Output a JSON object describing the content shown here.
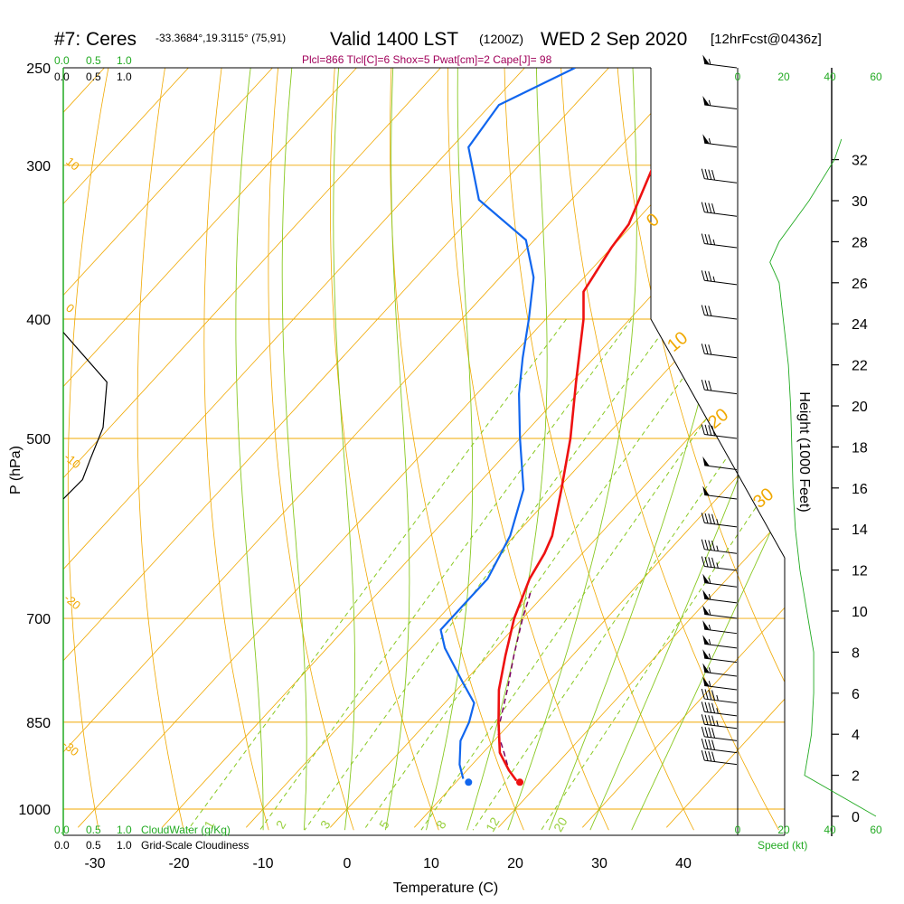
{
  "title": {
    "station": "#7: Ceres",
    "coords": "-33.3684°,19.3115° (75,91)",
    "valid": "Valid 1400 LST",
    "utc": "(1200Z)",
    "date": "WED 2 Sep 2020",
    "forecast": "[12hrFcst@0436z]"
  },
  "params_line": "Plcl=866 Tlcl[C]=6 Shox=5 Pwat[cm]=2 Cape[J]= 98",
  "axes": {
    "ylabel": "P (hPa)",
    "xlabel": "Temperature (C)",
    "right_label": "Height (1000 Feet)",
    "speed_label": "Speed (kt)",
    "cloudwater_label": "CloudWater (g/Kg)",
    "cloudiness_label": "Grid-Scale Cloudiness",
    "cloud_scale_top": [
      "0.0",
      "0.5",
      "1.0"
    ],
    "cloud_scale_bottom": [
      "0.0",
      "0.5",
      "1.0"
    ],
    "speed_ticks": [
      "0",
      "20",
      "40",
      "60"
    ]
  },
  "colors": {
    "temperature": "#ee1111",
    "dewpoint": "#1166ee",
    "parcel": "#7a0060",
    "isotherm": "#f0a800",
    "dry_adiabat": "#f0a800",
    "moist_adiabat": "#88c820",
    "mixing_ratio": "#88c820",
    "speed_profile": "#22aa22",
    "cloud_line": "#000000"
  },
  "chart_data": {
    "type": "line",
    "chart": "Skew-T log-P sounding",
    "pressure_ticks": [
      250,
      300,
      400,
      500,
      700,
      850,
      1000
    ],
    "pressure_tick_labels": [
      "250",
      "300",
      "400",
      "500",
      "700",
      "850",
      "1000"
    ],
    "temperature_ticks": [
      -30,
      -20,
      -10,
      0,
      10,
      20,
      30,
      40
    ],
    "temperature_tick_labels": [
      "-30",
      "-20",
      "-10",
      "0",
      "10",
      "20",
      "30",
      "40"
    ],
    "height_ticks_kft": [
      0,
      2,
      4,
      6,
      8,
      10,
      12,
      14,
      16,
      18,
      20,
      22,
      24,
      26,
      28,
      30,
      32
    ],
    "height_tick_labels": [
      "0",
      "2",
      "4",
      "6",
      "8",
      "10",
      "12",
      "14",
      "16",
      "18",
      "20",
      "22",
      "24",
      "26",
      "28",
      "30",
      "32"
    ],
    "temperature_profile": [
      {
        "p": 250,
        "t": -42.0
      },
      {
        "p": 270,
        "t": -38.5
      },
      {
        "p": 300,
        "t": -34.0
      },
      {
        "p": 335,
        "t": -30.5
      },
      {
        "p": 350,
        "t": -30.0
      },
      {
        "p": 380,
        "t": -28.5
      },
      {
        "p": 400,
        "t": -25.5
      },
      {
        "p": 450,
        "t": -19.5
      },
      {
        "p": 500,
        "t": -14.0
      },
      {
        "p": 550,
        "t": -9.5
      },
      {
        "p": 600,
        "t": -5.5
      },
      {
        "p": 620,
        "t": -4.5
      },
      {
        "p": 650,
        "t": -3.5
      },
      {
        "p": 700,
        "t": -1.0
      },
      {
        "p": 750,
        "t": 2.0
      },
      {
        "p": 800,
        "t": 5.0
      },
      {
        "p": 850,
        "t": 8.5
      },
      {
        "p": 900,
        "t": 12.0
      },
      {
        "p": 930,
        "t": 15.0
      },
      {
        "p": 948,
        "t": 17.0
      }
    ],
    "dewpoint_profile": [
      {
        "p": 250,
        "t": -54.0
      },
      {
        "p": 268,
        "t": -59.0
      },
      {
        "p": 290,
        "t": -58.0
      },
      {
        "p": 320,
        "t": -51.0
      },
      {
        "p": 345,
        "t": -41.0
      },
      {
        "p": 370,
        "t": -36.0
      },
      {
        "p": 400,
        "t": -32.0
      },
      {
        "p": 430,
        "t": -28.5
      },
      {
        "p": 460,
        "t": -25.0
      },
      {
        "p": 500,
        "t": -20.0
      },
      {
        "p": 550,
        "t": -14.0
      },
      {
        "p": 600,
        "t": -10.5
      },
      {
        "p": 650,
        "t": -8.5
      },
      {
        "p": 680,
        "t": -8.5
      },
      {
        "p": 715,
        "t": -8.5
      },
      {
        "p": 740,
        "t": -6.0
      },
      {
        "p": 790,
        "t": 0.0
      },
      {
        "p": 820,
        "t": 3.5
      },
      {
        "p": 850,
        "t": 5.0
      },
      {
        "p": 880,
        "t": 6.0
      },
      {
        "p": 920,
        "t": 8.5
      },
      {
        "p": 945,
        "t": 10.5
      }
    ],
    "surface": {
      "p": 951,
      "t": 17.6,
      "td": 11.5
    },
    "parcel_profile": [
      {
        "p": 948,
        "t": 17.0
      },
      {
        "p": 930,
        "t": 15.0
      },
      {
        "p": 900,
        "t": 12.5
      },
      {
        "p": 866,
        "t": 9.5
      },
      {
        "p": 800,
        "t": 6.0
      },
      {
        "p": 750,
        "t": 3.0
      },
      {
        "p": 700,
        "t": 0.0
      },
      {
        "p": 665,
        "t": -2.0
      }
    ],
    "isotherms_c": [
      -110,
      -100,
      -90,
      -80,
      -70,
      -60,
      -50,
      -40,
      -30,
      -20,
      -10,
      0,
      10,
      20,
      30,
      40
    ],
    "dry_adiabats_c": [
      -30,
      -20,
      -10,
      0,
      10,
      20,
      30,
      40,
      50,
      60,
      70,
      80,
      90,
      100,
      110,
      120,
      130,
      140,
      150
    ],
    "dry_adiabat_labels": [
      "10",
      "0",
      "-10",
      "-20",
      "-30",
      "0",
      "10",
      "20",
      "30"
    ],
    "moist_adiabats_c": [
      -10,
      -5,
      0,
      5,
      10,
      15,
      20,
      25,
      30,
      35
    ],
    "mixing_ratios_gkg": [
      1,
      2,
      3,
      5,
      8,
      12,
      20
    ],
    "mixing_ratio_labels": [
      "1",
      "2",
      "3",
      "5",
      "8",
      "12",
      "20"
    ],
    "cloud_profile": [
      {
        "p": 410,
        "v": 0.0
      },
      {
        "p": 450,
        "v": 0.68
      },
      {
        "p": 490,
        "v": 0.62
      },
      {
        "p": 520,
        "v": 0.42
      },
      {
        "p": 540,
        "v": 0.3
      },
      {
        "p": 560,
        "v": 0.0
      }
    ],
    "wind_speed_profile": [
      {
        "h": 0.0,
        "s": 60.0
      },
      {
        "h": 2.0,
        "s": 29.0
      },
      {
        "h": 4.0,
        "s": 32.0
      },
      {
        "h": 6.0,
        "s": 33.0
      },
      {
        "h": 8.0,
        "s": 33.0
      },
      {
        "h": 10.0,
        "s": 30.0
      },
      {
        "h": 12.0,
        "s": 27.0
      },
      {
        "h": 14.0,
        "s": 25.0
      },
      {
        "h": 16.0,
        "s": 24.0
      },
      {
        "h": 18.0,
        "s": 23.5
      },
      {
        "h": 20.0,
        "s": 23.0
      },
      {
        "h": 22.0,
        "s": 22.0
      },
      {
        "h": 24.0,
        "s": 20.0
      },
      {
        "h": 26.0,
        "s": 18.0
      },
      {
        "h": 27.0,
        "s": 14.0
      },
      {
        "h": 28.0,
        "s": 18.0
      },
      {
        "h": 30.0,
        "s": 31.0
      },
      {
        "h": 32.0,
        "s": 42.0
      },
      {
        "h": 33.0,
        "s": 45.0
      }
    ],
    "wind_barbs": [
      {
        "p": 250,
        "kt": 55
      },
      {
        "p": 270,
        "kt": 55
      },
      {
        "p": 290,
        "kt": 55
      },
      {
        "p": 310,
        "kt": 40
      },
      {
        "p": 330,
        "kt": 40
      },
      {
        "p": 350,
        "kt": 35
      },
      {
        "p": 375,
        "kt": 35
      },
      {
        "p": 400,
        "kt": 30
      },
      {
        "p": 430,
        "kt": 30
      },
      {
        "p": 460,
        "kt": 30
      },
      {
        "p": 500,
        "kt": 40
      },
      {
        "p": 530,
        "kt": 50
      },
      {
        "p": 560,
        "kt": 50
      },
      {
        "p": 590,
        "kt": 45
      },
      {
        "p": 620,
        "kt": 45
      },
      {
        "p": 640,
        "kt": 45
      },
      {
        "p": 660,
        "kt": 55
      },
      {
        "p": 680,
        "kt": 55
      },
      {
        "p": 700,
        "kt": 55
      },
      {
        "p": 720,
        "kt": 55
      },
      {
        "p": 740,
        "kt": 55
      },
      {
        "p": 760,
        "kt": 55
      },
      {
        "p": 780,
        "kt": 55
      },
      {
        "p": 800,
        "kt": 55
      },
      {
        "p": 820,
        "kt": 45
      },
      {
        "p": 840,
        "kt": 45
      },
      {
        "p": 860,
        "kt": 45
      },
      {
        "p": 880,
        "kt": 40
      },
      {
        "p": 900,
        "kt": 40
      },
      {
        "p": 920,
        "kt": 40
      }
    ]
  }
}
